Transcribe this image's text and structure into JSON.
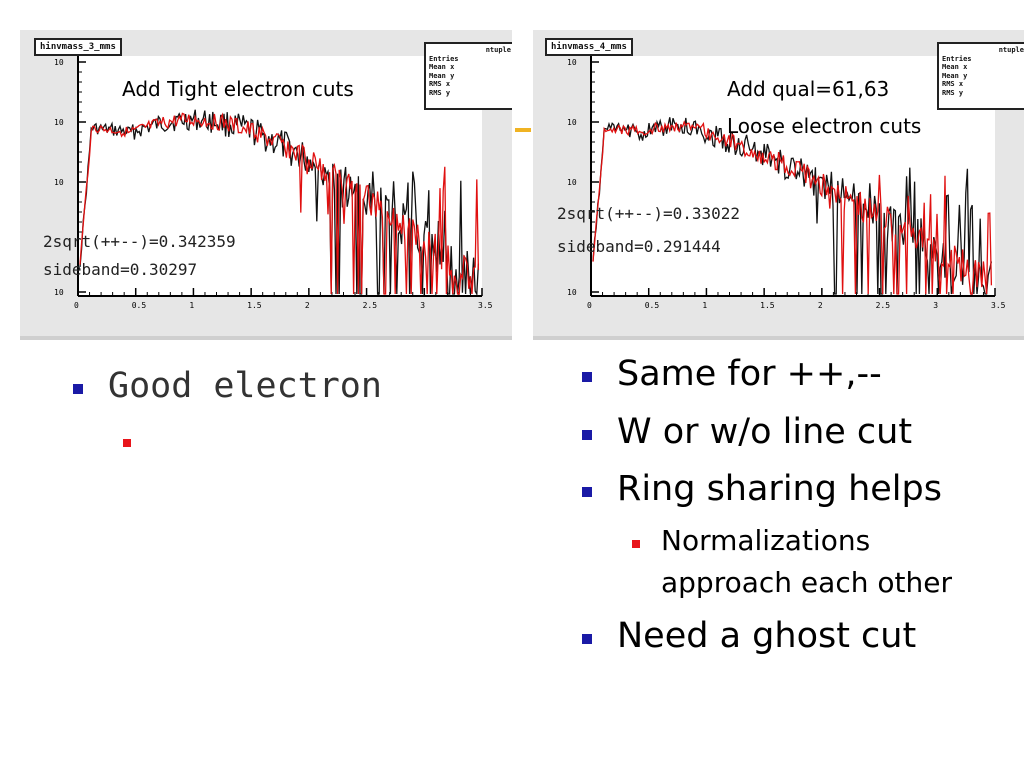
{
  "panels": [
    {
      "hist_title": "hinvmass_3_mms",
      "stats_entries": [
        "Entries",
        "Mean x",
        "Mean y",
        "RMS x",
        "RMS y"
      ],
      "stats_header": "ntuple",
      "annotation_lines": [
        "Add Tight electron cuts"
      ],
      "formula": "2sqrt(++--)=0.342359",
      "sideband": "sideband=0.30297",
      "y_tick_labels": [
        "10",
        "10",
        "10",
        "10"
      ],
      "x_tick_labels": [
        "0",
        "0.5",
        "1",
        "1.5",
        "2",
        "2.5",
        "3",
        "3.5"
      ]
    },
    {
      "hist_title": "hinvmass_4_mms",
      "stats_entries": [
        "Entries",
        "Mean x",
        "Mean y",
        "RMS x",
        "RMS y"
      ],
      "stats_header": "ntuple",
      "annotation_lines": [
        "Add qual=61,63",
        "Loose electron cuts"
      ],
      "formula": "2sqrt(++--)=0.33022",
      "sideband": "sideband=0.291444",
      "y_tick_labels": [
        "10",
        "10",
        "10",
        "10"
      ],
      "x_tick_labels": [
        "0",
        "0.5",
        "1",
        "1.5",
        "2",
        "2.5",
        "3",
        "3.5"
      ]
    }
  ],
  "left_bullets": {
    "level1": "Good electron",
    "level2": ""
  },
  "right_bullets": {
    "items": [
      "Same for ++,--",
      "W or w/o line cut",
      "Ring sharing helps"
    ],
    "sub_item": "Normalizations approach each other",
    "last_item": "Need a ghost cut"
  },
  "colors": {
    "bullet_l1": "#1a1aa6",
    "bullet_l2": "#e8151b",
    "hist_black": "#111111",
    "hist_red": "#e01010",
    "accent_orange": "#f0b323"
  }
}
